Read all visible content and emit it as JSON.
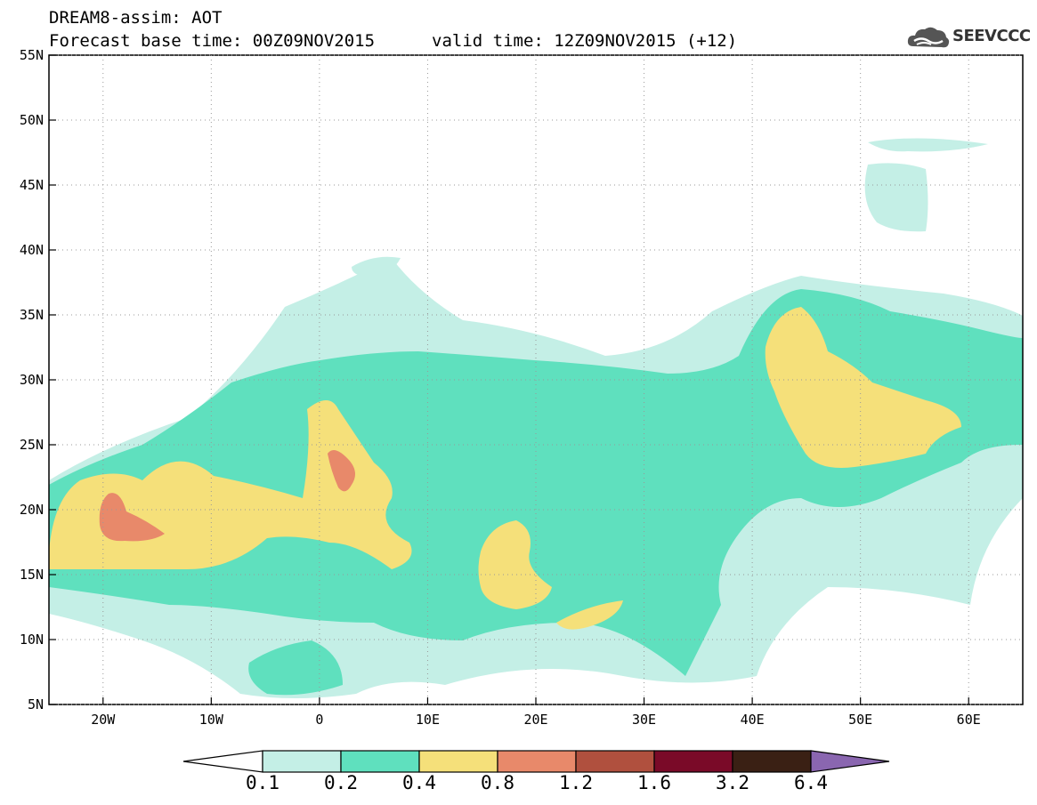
{
  "header": {
    "title": "DREAM8-assim: AOT",
    "base_time": "Forecast base time: 00Z09NOV2015",
    "valid_time": "valid time: 12Z09NOV2015 (+12)"
  },
  "logo": {
    "text": "SEEVCCC",
    "icon": "cloud-icon"
  },
  "map": {
    "lon_range": [
      -25,
      65
    ],
    "lat_range": [
      5,
      55
    ],
    "lat_labels": [
      "55N",
      "50N",
      "45N",
      "40N",
      "35N",
      "30N",
      "25N",
      "20N",
      "15N",
      "10N",
      "5N"
    ],
    "lat_values": [
      55,
      50,
      45,
      40,
      35,
      30,
      25,
      20,
      15,
      10,
      5
    ],
    "lon_labels": [
      "20W",
      "10W",
      "0",
      "10E",
      "20E",
      "30E",
      "40E",
      "50E",
      "60E"
    ],
    "lon_values": [
      -20,
      -10,
      0,
      10,
      20,
      30,
      40,
      50,
      60
    ]
  },
  "legend": {
    "levels": [
      "0.1",
      "0.2",
      "0.4",
      "0.8",
      "1.2",
      "1.6",
      "3.2",
      "6.4"
    ],
    "colors": [
      "#ffffff",
      "#c4efe6",
      "#5fe0be",
      "#f5e07a",
      "#e8896a",
      "#b0503e",
      "#7a0a28",
      "#3a2014",
      "#8a66b0"
    ]
  },
  "colors": {
    "c1": "#c4efe6",
    "c2": "#5fe0be",
    "c3": "#f5e07a",
    "c4": "#e8896a"
  }
}
